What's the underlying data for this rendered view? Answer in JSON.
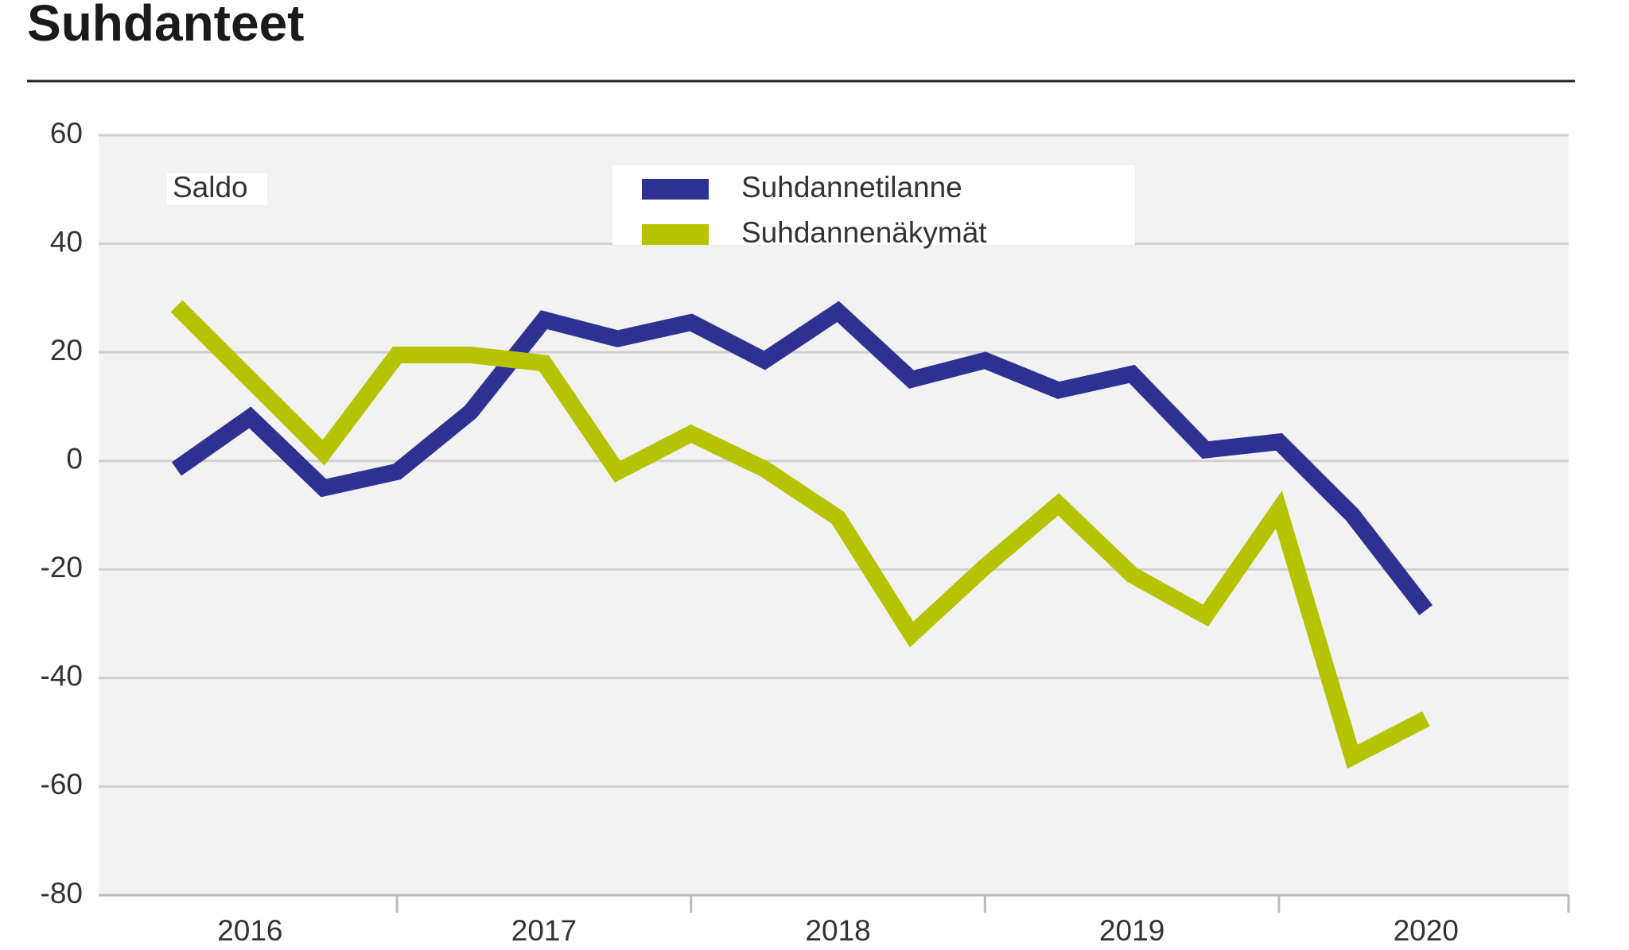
{
  "chart_data": {
    "type": "line",
    "title": "Suhdanteet",
    "ylabel": "Saldo",
    "categories": [
      null,
      "2016",
      null,
      null,
      null,
      "2017",
      null,
      null,
      null,
      "2018",
      null,
      null,
      null,
      "2019",
      null,
      null,
      null,
      "2020"
    ],
    "series": [
      {
        "name": "Suhdannetilanne",
        "color": "#2e3192",
        "values": [
          -1.5,
          8,
          -5,
          -2,
          9,
          26,
          22.5,
          25.5,
          18.5,
          27.5,
          15,
          18.5,
          13,
          16,
          2,
          3.5,
          -10,
          -27.5
        ]
      },
      {
        "name": "Suhdannenäkymät",
        "color": "#b5c300",
        "values": [
          28.5,
          15,
          1.5,
          19.5,
          19.5,
          18,
          -2,
          5,
          -1.5,
          -10.5,
          -32,
          -19.5,
          -8,
          -21,
          -28.5,
          -9,
          -54.5,
          -47.5
        ]
      }
    ],
    "ylim": [
      -80,
      60
    ],
    "yticks": [
      -80,
      -60,
      -40,
      -20,
      0,
      20,
      40,
      60
    ],
    "grid": true
  }
}
